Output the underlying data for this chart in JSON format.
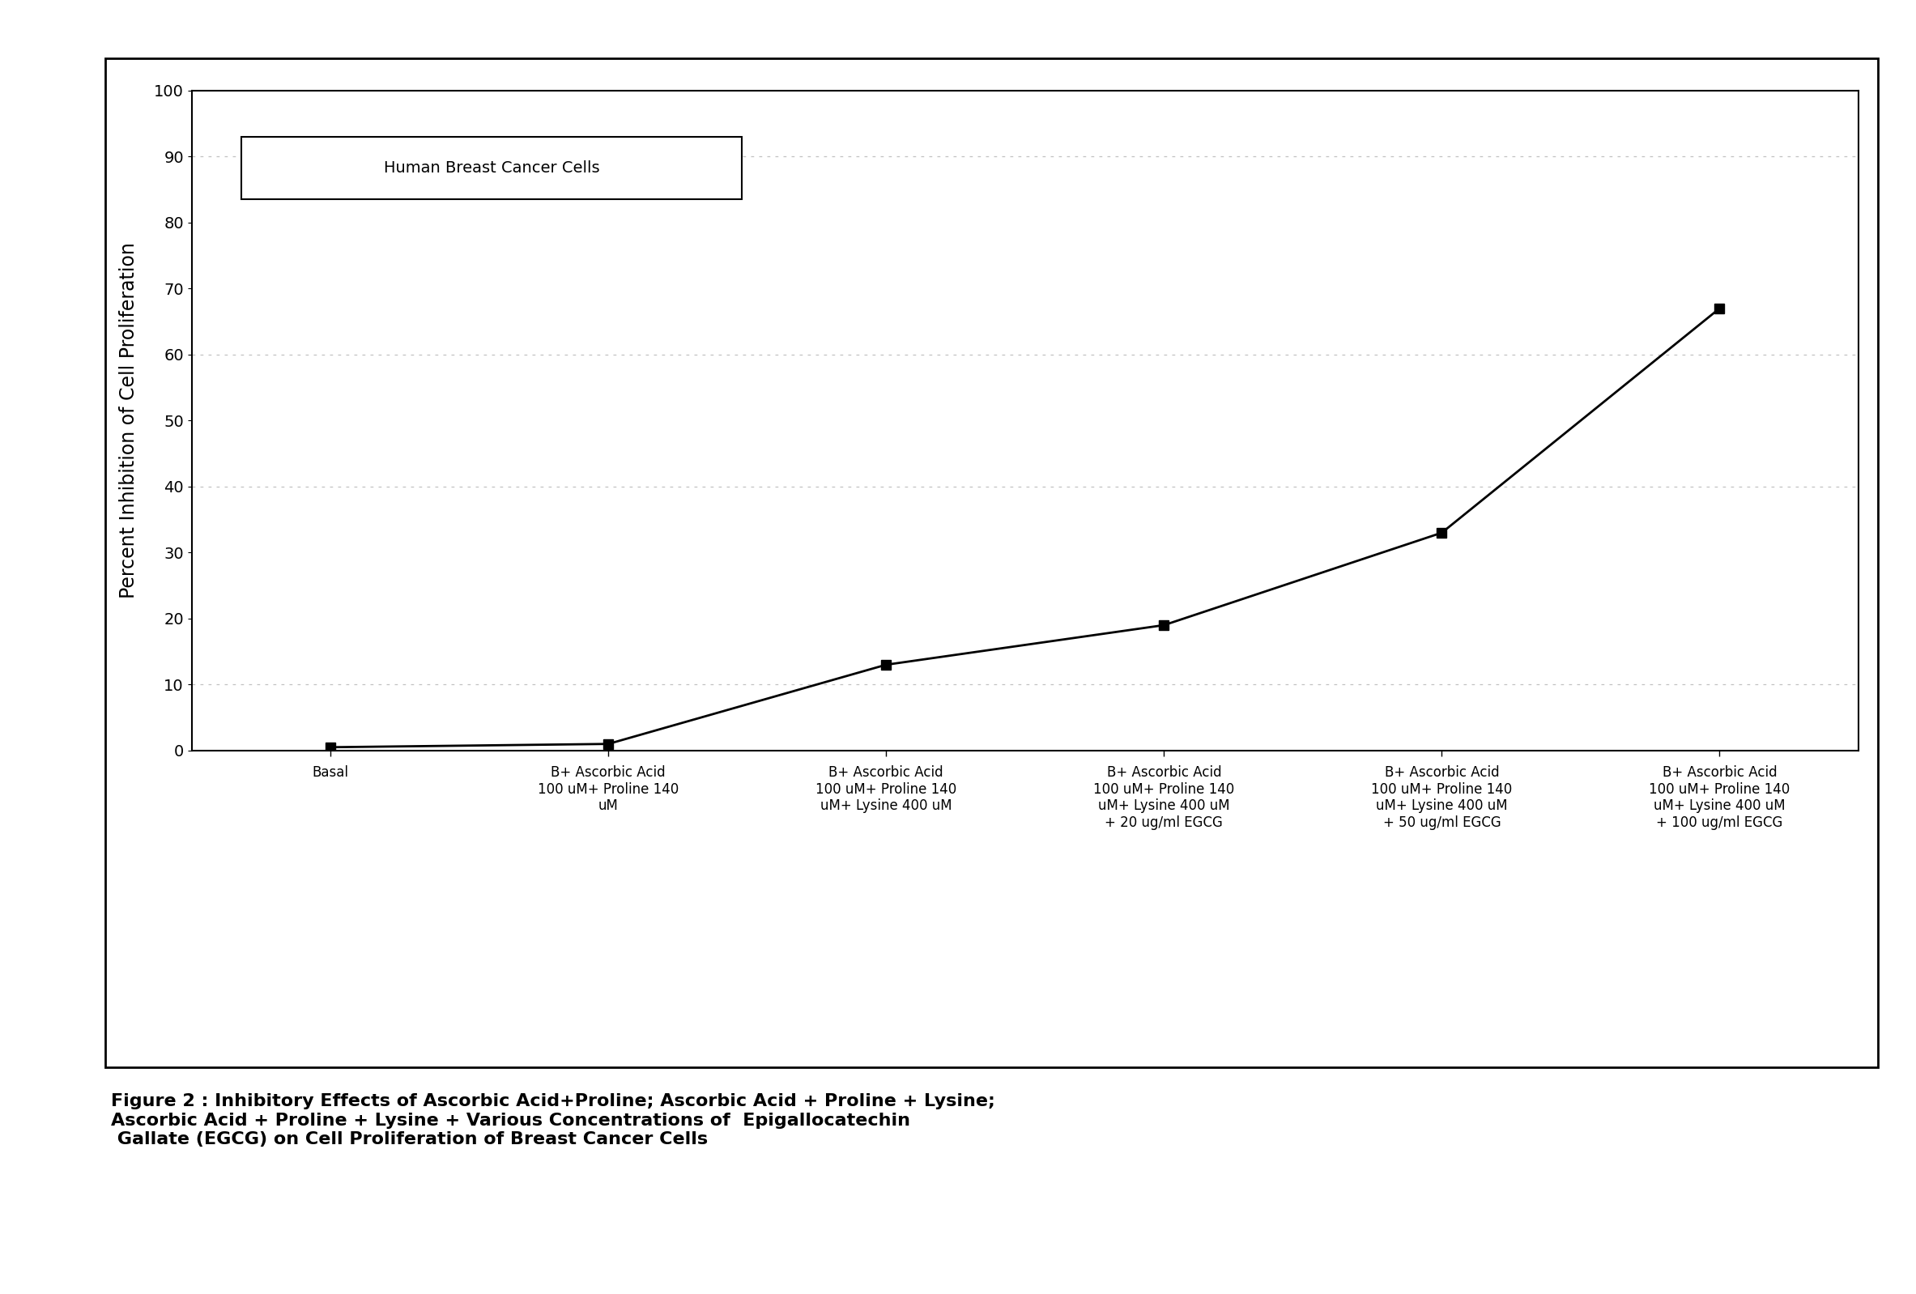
{
  "x_positions": [
    0,
    1,
    2,
    3,
    4,
    5
  ],
  "y_values": [
    0.5,
    1.0,
    13.0,
    19.0,
    33.0,
    67.0
  ],
  "x_tick_labels": [
    "Basal",
    "B+ Ascorbic Acid\n100 uM+ Proline 140\nuM",
    "B+ Ascorbic Acid\n100 uM+ Proline 140\nuM+ Lysine 400 uM",
    "B+ Ascorbic Acid\n100 uM+ Proline 140\nuM+ Lysine 400 uM\n+ 20 ug/ml EGCG",
    "B+ Ascorbic Acid\n100 uM+ Proline 140\nuM+ Lysine 400 uM\n+ 50 ug/ml EGCG",
    "B+ Ascorbic Acid\n100 uM+ Proline 140\nuM+ Lysine 400 uM\n+ 100 ug/ml EGCG"
  ],
  "ylabel": "Percent Inhibition of Cell Proliferation",
  "ylim": [
    0,
    100
  ],
  "yticks": [
    0,
    10,
    20,
    30,
    40,
    50,
    60,
    70,
    80,
    90,
    100
  ],
  "legend_label": "Human Breast Cancer Cells",
  "line_color": "#000000",
  "marker": "s",
  "marker_color": "#000000",
  "marker_size": 9,
  "line_width": 2.0,
  "dotted_line_y": [
    90,
    60,
    40,
    10
  ],
  "background_color": "#ffffff",
  "figure_caption_line1": "Figure 2 : Inhibitory Effects of Ascorbic Acid+Proline; Ascorbic Acid + Proline + Lysine;",
  "figure_caption_line2": "Ascorbic Acid + Proline + Lysine + Various Concentrations of  Epigallocatechin  ",
  "figure_caption_line3": " Gallate (EGCG) on Cell Proliferation of Breast Cancer Cells",
  "caption_fontsize": 16
}
